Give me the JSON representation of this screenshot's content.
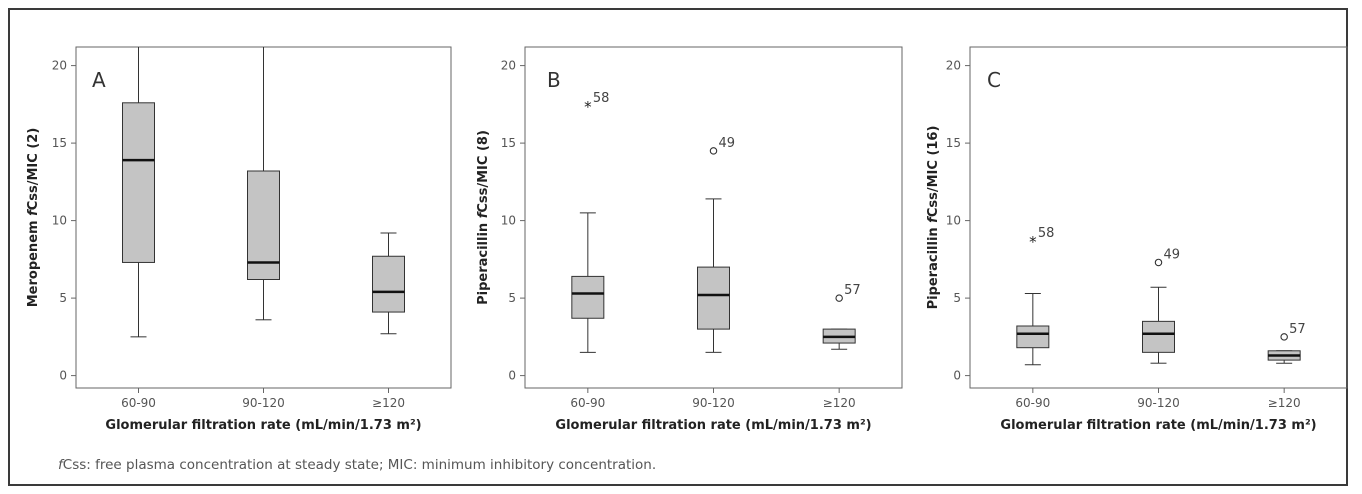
{
  "chart_data": [
    {
      "type": "boxplot",
      "panel_label": "A",
      "ylabel": {
        "prefix": "Meropenem ",
        "italic": "f",
        "suffix": "Css/MIC (2)"
      },
      "xlabel": "Glomerular filtration rate (mL/min/1.73 m²)",
      "categories": [
        "60-90",
        "90-120",
        "≥120"
      ],
      "yticks": [
        0,
        5,
        10,
        15,
        20
      ],
      "ylim": [
        -0.8,
        21.2
      ],
      "boxes": [
        {
          "whisker_low": 2.5,
          "q1": 7.3,
          "median": 13.9,
          "q3": 17.6,
          "whisker_high": 21.2
        },
        {
          "whisker_low": 3.6,
          "q1": 6.2,
          "median": 7.3,
          "q3": 13.2,
          "whisker_high": 21.2
        },
        {
          "whisker_low": 2.7,
          "q1": 4.1,
          "median": 5.4,
          "q3": 7.7,
          "whisker_high": 9.2
        }
      ],
      "outliers": []
    },
    {
      "type": "boxplot",
      "panel_label": "B",
      "ylabel": {
        "prefix": "Piperacillin ",
        "italic": "f",
        "suffix": "Css/MIC (8)"
      },
      "xlabel": "Glomerular filtration rate (mL/min/1.73 m²)",
      "categories": [
        "60-90",
        "90-120",
        "≥120"
      ],
      "yticks": [
        0,
        5,
        10,
        15,
        20
      ],
      "ylim": [
        -0.8,
        21.2
      ],
      "boxes": [
        {
          "whisker_low": 1.5,
          "q1": 3.7,
          "median": 5.3,
          "q3": 6.4,
          "whisker_high": 10.5
        },
        {
          "whisker_low": 1.5,
          "q1": 3.0,
          "median": 5.2,
          "q3": 7.0,
          "whisker_high": 11.4
        },
        {
          "whisker_low": 1.7,
          "q1": 2.1,
          "median": 2.5,
          "q3": 3.0,
          "whisker_high": 3.0
        }
      ],
      "outliers": [
        {
          "category": "60-90",
          "value": 17.4,
          "marker": "star",
          "label": "58"
        },
        {
          "category": "90-120",
          "value": 14.5,
          "marker": "circle",
          "label": "49"
        },
        {
          "category": "≥120",
          "value": 5.0,
          "marker": "circle",
          "label": "57"
        }
      ]
    },
    {
      "type": "boxplot",
      "panel_label": "C",
      "ylabel": {
        "prefix": "Piperacillin ",
        "italic": "f",
        "suffix": "Css/MIC (16)"
      },
      "xlabel": "Glomerular filtration rate (mL/min/1.73 m²)",
      "categories": [
        "60-90",
        "90-120",
        "≥120"
      ],
      "yticks": [
        0,
        5,
        10,
        15,
        20
      ],
      "ylim": [
        -0.8,
        21.2
      ],
      "boxes": [
        {
          "whisker_low": 0.7,
          "q1": 1.8,
          "median": 2.7,
          "q3": 3.2,
          "whisker_high": 5.3
        },
        {
          "whisker_low": 0.8,
          "q1": 1.5,
          "median": 2.7,
          "q3": 3.5,
          "whisker_high": 5.7
        },
        {
          "whisker_low": 0.8,
          "q1": 1.0,
          "median": 1.3,
          "q3": 1.6,
          "whisker_high": 1.6
        }
      ],
      "outliers": [
        {
          "category": "60-90",
          "value": 8.7,
          "marker": "star",
          "label": "58"
        },
        {
          "category": "90-120",
          "value": 7.3,
          "marker": "circle",
          "label": "49"
        },
        {
          "category": "≥120",
          "value": 2.5,
          "marker": "circle",
          "label": "57"
        }
      ]
    }
  ],
  "footnote": {
    "italic": "f",
    "text": "Css: free plasma concentration at steady state; MIC: minimum inhibitory concentration."
  },
  "colors": {
    "box_fill": "#c4c4c4",
    "stroke": "#333333",
    "axis": "#666666"
  }
}
